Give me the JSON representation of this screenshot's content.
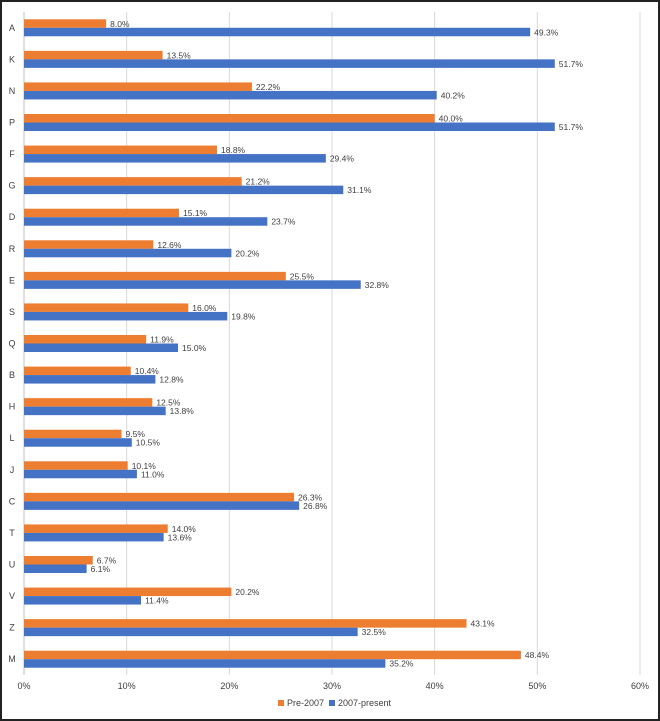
{
  "chart_data": {
    "type": "bar",
    "orientation": "horizontal",
    "categories": [
      "A",
      "K",
      "N",
      "P",
      "F",
      "G",
      "D",
      "R",
      "E",
      "S",
      "Q",
      "B",
      "H",
      "L",
      "J",
      "C",
      "T",
      "U",
      "V",
      "Z",
      "M"
    ],
    "series": [
      {
        "name": "Pre-2007",
        "color": "#ED7D31",
        "values": [
          8.0,
          13.5,
          22.2,
          40.0,
          18.8,
          21.2,
          15.1,
          12.6,
          25.5,
          16.0,
          11.9,
          10.4,
          12.5,
          9.5,
          10.1,
          26.3,
          14.0,
          6.7,
          20.2,
          43.1,
          48.4
        ]
      },
      {
        "name": "2007-present",
        "color": "#4472C4",
        "values": [
          49.3,
          51.7,
          40.2,
          51.7,
          29.4,
          31.1,
          23.7,
          20.2,
          32.8,
          19.8,
          15.0,
          12.8,
          13.8,
          10.5,
          11.0,
          26.8,
          13.6,
          6.1,
          11.4,
          32.5,
          35.2
        ]
      }
    ],
    "xlim": [
      0,
      60
    ],
    "x_ticks": [
      "0%",
      "10%",
      "20%",
      "30%",
      "40%",
      "50%",
      "60%"
    ],
    "value_format": "percent-1-decimal",
    "grid": "vertical",
    "legend": "bottom",
    "xlabel": "",
    "ylabel": "",
    "title": ""
  }
}
